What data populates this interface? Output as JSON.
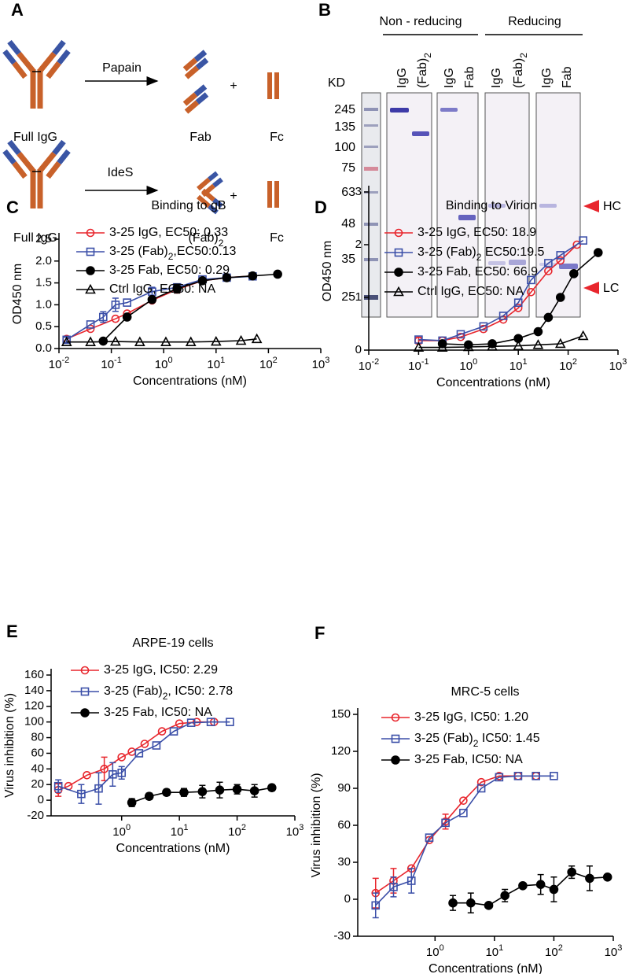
{
  "panel_labels": [
    "A",
    "B",
    "C",
    "D",
    "E",
    "F"
  ],
  "diagram": {
    "rows": [
      {
        "input": "Full IgG",
        "enzyme": "Papain",
        "plus": "+",
        "products": [
          "Fab",
          "Fc"
        ]
      },
      {
        "input": "Full IgG",
        "enzyme": "IdeS",
        "plus": "+",
        "products": [
          "(Fab)2",
          "Fc"
        ]
      }
    ]
  },
  "gel": {
    "unit": "KD",
    "markers": [
      245,
      135,
      100,
      75,
      63,
      48,
      35,
      25
    ],
    "groups": [
      {
        "label": "Non - reducing",
        "lanes": [
          "IgG",
          "(Fab)2",
          "IgG",
          "Fab"
        ]
      },
      {
        "label": "Reducing",
        "lanes": [
          "IgG",
          "(Fab)2",
          "IgG",
          "Fab"
        ]
      }
    ],
    "arrows": [
      "HC",
      "LC"
    ]
  },
  "chart_data": [
    {
      "type": "scatter",
      "title": "Binding to gB",
      "xlabel": "Concentrations (nM)",
      "ylabel": "OD450 nm",
      "xscale": "log",
      "xlim": [
        0.01,
        1000
      ],
      "xticks": [
        {
          "value": 0.01,
          "label": "10-2"
        },
        {
          "value": 0.1,
          "label": "10-1"
        },
        {
          "value": 1,
          "label": "100"
        },
        {
          "value": 10,
          "label": "101"
        },
        {
          "value": 100,
          "label": "102"
        },
        {
          "value": 1000,
          "label": "103"
        }
      ],
      "ylim": [
        0,
        2.5
      ],
      "yticks": [
        {
          "value": 0,
          "label": "0.0"
        },
        0.5,
        {
          "value": 1,
          "label": "1.0"
        },
        1.5,
        {
          "value": 2,
          "label": "2.0"
        },
        2.5
      ],
      "legend": "upper left",
      "series": [
        {
          "name": "3-25 IgG, EC50: 0.33",
          "color": "#e8262d",
          "marker": "open-circle",
          "x": [
            0.014,
            0.04,
            0.12,
            0.2,
            0.6,
            1.8,
            5.5,
            16,
            50
          ],
          "values": [
            0.22,
            0.45,
            0.68,
            0.8,
            1.1,
            1.35,
            1.55,
            1.62,
            1.66
          ],
          "errors": [
            null,
            null,
            null,
            null,
            null,
            0.08,
            null,
            null,
            null
          ]
        },
        {
          "name": "3-25 (Fab)2,EC50:0.13",
          "color": "#3b4fa8",
          "marker": "open-square",
          "x": [
            0.014,
            0.04,
            0.07,
            0.12,
            0.2,
            0.6,
            1.8,
            5.5,
            16,
            50
          ],
          "values": [
            0.2,
            0.55,
            0.72,
            1.0,
            1.05,
            1.3,
            1.4,
            1.58,
            1.62,
            1.65
          ],
          "errors": [
            0.06,
            null,
            0.12,
            0.15,
            null,
            0.1,
            0.07,
            null,
            null,
            0.04
          ]
        },
        {
          "name": "3-25 Fab, EC50: 0.29",
          "color": "#000000",
          "marker": "filled-circle",
          "x": [
            0.07,
            0.2,
            0.6,
            1.8,
            5.5,
            16,
            50,
            150
          ],
          "values": [
            0.17,
            0.72,
            1.12,
            1.37,
            1.55,
            1.62,
            1.66,
            1.7
          ],
          "errors": [
            null,
            null,
            0.06,
            0.1,
            null,
            null,
            null,
            null
          ]
        },
        {
          "name": "Ctrl IgG, EC50: NA",
          "color": "#000000",
          "marker": "open-triangle",
          "x": [
            0.014,
            0.04,
            0.12,
            0.35,
            1.1,
            3.3,
            10,
            30,
            60
          ],
          "values": [
            0.15,
            0.15,
            0.16,
            0.15,
            0.15,
            0.15,
            0.16,
            0.18,
            0.22
          ]
        }
      ]
    },
    {
      "type": "scatter",
      "title": "Binding to Virion",
      "xlabel": "Concentrations (nM)",
      "ylabel": "OD450 nm",
      "xscale": "log",
      "xlim": [
        0.01,
        1000
      ],
      "xticks": [
        {
          "value": 0.01,
          "label": "10-2"
        },
        {
          "value": 0.1,
          "label": "10-1"
        },
        {
          "value": 1,
          "label": "100"
        },
        {
          "value": 10,
          "label": "101"
        },
        {
          "value": 100,
          "label": "102"
        },
        {
          "value": 1000,
          "label": "103"
        }
      ],
      "ylim": [
        0,
        3
      ],
      "yticks": [
        0,
        1,
        2,
        3
      ],
      "legend": "upper left",
      "series": [
        {
          "name": "3-25 IgG, EC50: 18.9",
          "color": "#e8262d",
          "marker": "open-circle",
          "x": [
            0.1,
            0.3,
            0.7,
            2,
            5,
            10,
            18,
            40,
            70,
            150
          ],
          "values": [
            0.18,
            0.18,
            0.25,
            0.4,
            0.58,
            0.8,
            1.1,
            1.5,
            1.7,
            2.0
          ],
          "errors": [
            0.06,
            null,
            null,
            null,
            null,
            null,
            null,
            null,
            null,
            null
          ]
        },
        {
          "name": "3-25 (Fab)2 EC50:19.5",
          "color": "#3b4fa8",
          "marker": "open-square",
          "x": [
            0.1,
            0.3,
            0.7,
            2,
            5,
            10,
            18,
            40,
            70,
            200
          ],
          "values": [
            0.2,
            0.18,
            0.3,
            0.45,
            0.65,
            0.9,
            1.33,
            1.65,
            1.8,
            2.08
          ]
        },
        {
          "name": "3-25 Fab, EC50: 66.9",
          "color": "#000000",
          "marker": "filled-circle",
          "x": [
            0.3,
            1,
            3,
            10,
            25,
            40,
            70,
            130,
            400
          ],
          "values": [
            0.12,
            0.1,
            0.12,
            0.22,
            0.35,
            0.62,
            1.0,
            1.45,
            1.85
          ]
        },
        {
          "name": "Ctrl IgG, EC50: NA",
          "color": "#000000",
          "marker": "open-triangle",
          "x": [
            0.1,
            0.3,
            1,
            3,
            10,
            25,
            70,
            200
          ],
          "values": [
            0.05,
            0.05,
            0.06,
            0.07,
            0.08,
            0.1,
            0.12,
            0.27
          ]
        }
      ]
    },
    {
      "type": "scatter",
      "title": "ARPE-19 cells",
      "xlabel": "Concentrations (nM)",
      "ylabel": "Virus inhibition (%)",
      "xscale": "log",
      "xlim": [
        0.06,
        1000
      ],
      "xticks": [
        {
          "value": 1,
          "label": "100"
        },
        {
          "value": 10,
          "label": "101"
        },
        {
          "value": 100,
          "label": "102"
        },
        {
          "value": 1000,
          "label": "103"
        }
      ],
      "ylim": [
        -20,
        160
      ],
      "yticks": [
        -20,
        0,
        20,
        40,
        60,
        80,
        100,
        120,
        140,
        160
      ],
      "legend": "upper left",
      "series": [
        {
          "name": "3-25 IgG, IC50: 2.29",
          "color": "#e8262d",
          "marker": "open-circle",
          "x": [
            0.08,
            0.12,
            0.25,
            0.5,
            1,
            1.5,
            2.5,
            5,
            10,
            20,
            40
          ],
          "values": [
            13,
            18,
            32,
            40,
            55,
            62,
            72,
            88,
            98,
            100,
            100
          ],
          "errors": [
            8,
            null,
            null,
            15,
            null,
            null,
            null,
            null,
            null,
            null,
            null
          ]
        },
        {
          "name": "3-25 (Fab)2, IC50: 2.78",
          "color": "#3b4fa8",
          "marker": "open-square",
          "x": [
            0.08,
            0.2,
            0.4,
            0.7,
            1,
            2,
            4,
            8,
            16,
            35,
            75
          ],
          "values": [
            18,
            8,
            15,
            33,
            35,
            60,
            70,
            88,
            99,
            100,
            100
          ],
          "errors": [
            8,
            12,
            20,
            15,
            8,
            null,
            null,
            null,
            null,
            null,
            null
          ]
        },
        {
          "name": "3-25 Fab, IC50: NA",
          "color": "#000000",
          "marker": "filled-circle",
          "x": [
            1.5,
            3,
            6,
            12,
            25,
            50,
            100,
            200,
            400
          ],
          "values": [
            -3,
            5,
            10,
            10,
            11,
            13,
            14,
            12,
            16
          ],
          "errors": [
            5,
            4,
            4,
            5,
            8,
            10,
            6,
            8,
            4
          ]
        }
      ]
    },
    {
      "type": "scatter",
      "title": "MRC-5 cells",
      "xlabel": "Concentrations (nM)",
      "ylabel": "Virus inhibition (%)",
      "xscale": "log",
      "xlim": [
        0.05,
        1000
      ],
      "xticks": [
        {
          "value": 1,
          "label": "100"
        },
        {
          "value": 10,
          "label": "101"
        },
        {
          "value": 100,
          "label": "102"
        },
        {
          "value": 1000,
          "label": "103"
        }
      ],
      "ylim": [
        -30,
        150
      ],
      "yticks": [
        -30,
        0,
        30,
        60,
        90,
        120,
        150
      ],
      "legend": "upper left",
      "series": [
        {
          "name": "3-25 IgG, IC50: 1.20",
          "color": "#e8262d",
          "marker": "open-circle",
          "x": [
            0.1,
            0.2,
            0.4,
            0.8,
            1.5,
            3,
            6,
            12,
            25,
            50
          ],
          "values": [
            5,
            15,
            25,
            48,
            63,
            80,
            95,
            100,
            100,
            100
          ],
          "errors": [
            12,
            10,
            null,
            null,
            6,
            null,
            null,
            null,
            null,
            null
          ]
        },
        {
          "name": "3-25 (Fab)2 IC50: 1.45",
          "color": "#3b4fa8",
          "marker": "open-square",
          "x": [
            0.1,
            0.2,
            0.4,
            0.8,
            1.5,
            3,
            6,
            12,
            25,
            50,
            100
          ],
          "values": [
            -5,
            10,
            15,
            50,
            62,
            70,
            90,
            99,
            100,
            100,
            100
          ],
          "errors": [
            10,
            8,
            10,
            null,
            null,
            null,
            null,
            null,
            null,
            null,
            null
          ]
        },
        {
          "name": "3-25 Fab, IC50: NA",
          "color": "#000000",
          "marker": "filled-circle",
          "x": [
            2,
            4,
            8,
            15,
            30,
            60,
            100,
            200,
            400,
            800
          ],
          "values": [
            -3,
            -3,
            -5,
            3,
            11,
            12,
            8,
            22,
            17,
            18
          ],
          "errors": [
            6,
            8,
            null,
            5,
            null,
            8,
            10,
            5,
            10,
            null
          ]
        }
      ]
    }
  ]
}
